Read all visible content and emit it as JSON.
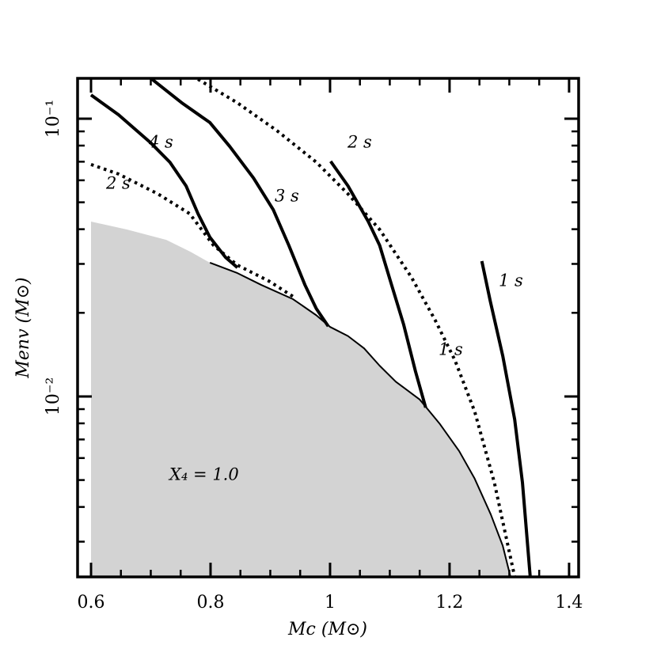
{
  "chart_data": {
    "type": "line",
    "xlabel": "Mc (M⊙)",
    "ylabel": "Menv (M⊙)",
    "xlim": [
      0.5775,
      1.416
    ],
    "ylim": [
      0.00224,
      0.1397
    ],
    "yscale": "log",
    "xticks": [
      0.6,
      0.8,
      1.0,
      1.2,
      1.4
    ],
    "xminorticks": [
      0.65,
      0.7,
      0.75,
      0.85,
      0.9,
      0.95,
      1.05,
      1.1,
      1.15,
      1.25,
      1.3,
      1.35
    ],
    "yticks": [
      {
        "value": 0.01,
        "label": "10⁻²"
      },
      {
        "value": 0.1,
        "label": "10⁻¹"
      }
    ],
    "yminorticks": [
      0.003,
      0.004,
      0.005,
      0.006,
      0.007,
      0.008,
      0.009,
      0.02,
      0.03,
      0.04,
      0.05,
      0.06,
      0.07,
      0.08,
      0.09
    ],
    "annotations": [
      "4 s",
      "3 s",
      "2 s",
      "2 s",
      "1 s",
      "1 s",
      "X₄ = 1.0"
    ],
    "series": [
      {
        "style": "fill",
        "color": "#d3d3d3",
        "x": [
          0.6,
          0.66,
          0.726,
          0.766,
          0.799,
          0.845,
          0.885,
          0.938,
          0.977,
          1.0,
          1.03,
          1.057,
          1.083,
          1.11,
          1.15,
          1.183,
          1.216,
          1.242,
          1.269,
          1.289,
          1.302
        ],
        "values": [
          0.0426,
          0.0399,
          0.0366,
          0.0332,
          0.0303,
          0.0278,
          0.0252,
          0.0224,
          0.0196,
          0.0178,
          0.0165,
          0.0149,
          0.0129,
          0.0113,
          0.00975,
          0.008,
          0.00636,
          0.00506,
          0.00376,
          0.0029,
          0.00224
        ]
      },
      {
        "style": "thin",
        "color": "#000000",
        "x": [
          0.799,
          0.845,
          0.885,
          0.938,
          0.977,
          1.0,
          1.03,
          1.057,
          1.083,
          1.11,
          1.15,
          1.183,
          1.216,
          1.242,
          1.269,
          1.289,
          1.302
        ],
        "values": [
          0.0303,
          0.0278,
          0.0252,
          0.0224,
          0.0196,
          0.0178,
          0.0165,
          0.0149,
          0.0129,
          0.0113,
          0.00975,
          0.008,
          0.00636,
          0.00506,
          0.00376,
          0.0029,
          0.00224
        ]
      },
      {
        "style": "solid",
        "color": "#000000",
        "x": [
          0.6,
          0.646,
          0.699,
          0.732,
          0.759,
          0.779,
          0.799,
          0.825,
          0.845
        ],
        "values": [
          0.1217,
          0.1033,
          0.0822,
          0.0697,
          0.0573,
          0.0455,
          0.0374,
          0.0317,
          0.0291
        ]
      },
      {
        "style": "solid",
        "color": "#000000",
        "x": [
          0.702,
          0.752,
          0.799,
          0.832,
          0.872,
          0.905,
          0.931,
          0.958,
          0.977,
          0.997
        ],
        "values": [
          0.1387,
          0.114,
          0.0968,
          0.0795,
          0.0611,
          0.047,
          0.035,
          0.0252,
          0.0207,
          0.0179
        ]
      },
      {
        "style": "solid",
        "color": "#000000",
        "x": [
          1.001,
          1.03,
          1.064,
          1.083,
          1.103,
          1.123,
          1.143,
          1.16
        ],
        "values": [
          0.0702,
          0.0573,
          0.0426,
          0.035,
          0.0252,
          0.0182,
          0.0123,
          0.00912
        ]
      },
      {
        "style": "solid",
        "color": "#000000",
        "x": [
          1.254,
          1.268,
          1.289,
          1.309,
          1.322,
          1.335
        ],
        "values": [
          0.0307,
          0.0221,
          0.014,
          0.00826,
          0.00489,
          0.00224
        ]
      },
      {
        "style": "dotted",
        "color": "#000000",
        "x": [
          0.779,
          0.845,
          0.911,
          0.977,
          1.03,
          1.083,
          1.136,
          1.176,
          1.209,
          1.242,
          1.275,
          1.309
        ],
        "values": [
          0.1387,
          0.114,
          0.0906,
          0.0697,
          0.0536,
          0.0399,
          0.0269,
          0.0188,
          0.0135,
          0.00883,
          0.00489,
          0.00224
        ]
      },
      {
        "style": "dotted",
        "color": "#000000",
        "x": [
          0.6,
          0.646,
          0.712,
          0.765,
          0.805,
          0.845,
          0.898,
          0.938
        ],
        "values": [
          0.0684,
          0.0632,
          0.0536,
          0.0455,
          0.035,
          0.0297,
          0.026,
          0.0229
        ]
      }
    ]
  }
}
